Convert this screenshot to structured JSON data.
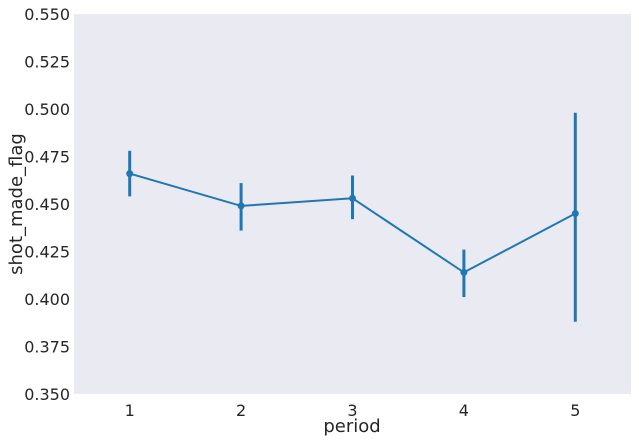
{
  "chart_data": {
    "type": "line",
    "title": "",
    "xlabel": "period",
    "ylabel": "shot_made_flag",
    "categories": [
      "1",
      "2",
      "3",
      "4",
      "5"
    ],
    "series": [
      {
        "values": [
          0.466,
          0.449,
          0.453,
          0.414,
          0.445
        ],
        "error_low": [
          0.454,
          0.436,
          0.442,
          0.401,
          0.388
        ],
        "error_high": [
          0.478,
          0.461,
          0.465,
          0.426,
          0.498
        ]
      }
    ],
    "ylim": [
      0.35,
      0.55
    ],
    "yticks": [
      "0.350",
      "0.375",
      "0.400",
      "0.425",
      "0.450",
      "0.475",
      "0.500",
      "0.525",
      "0.550"
    ],
    "grid": false,
    "line_color": "#1f77b4",
    "background_color": "#eaeaf2"
  }
}
